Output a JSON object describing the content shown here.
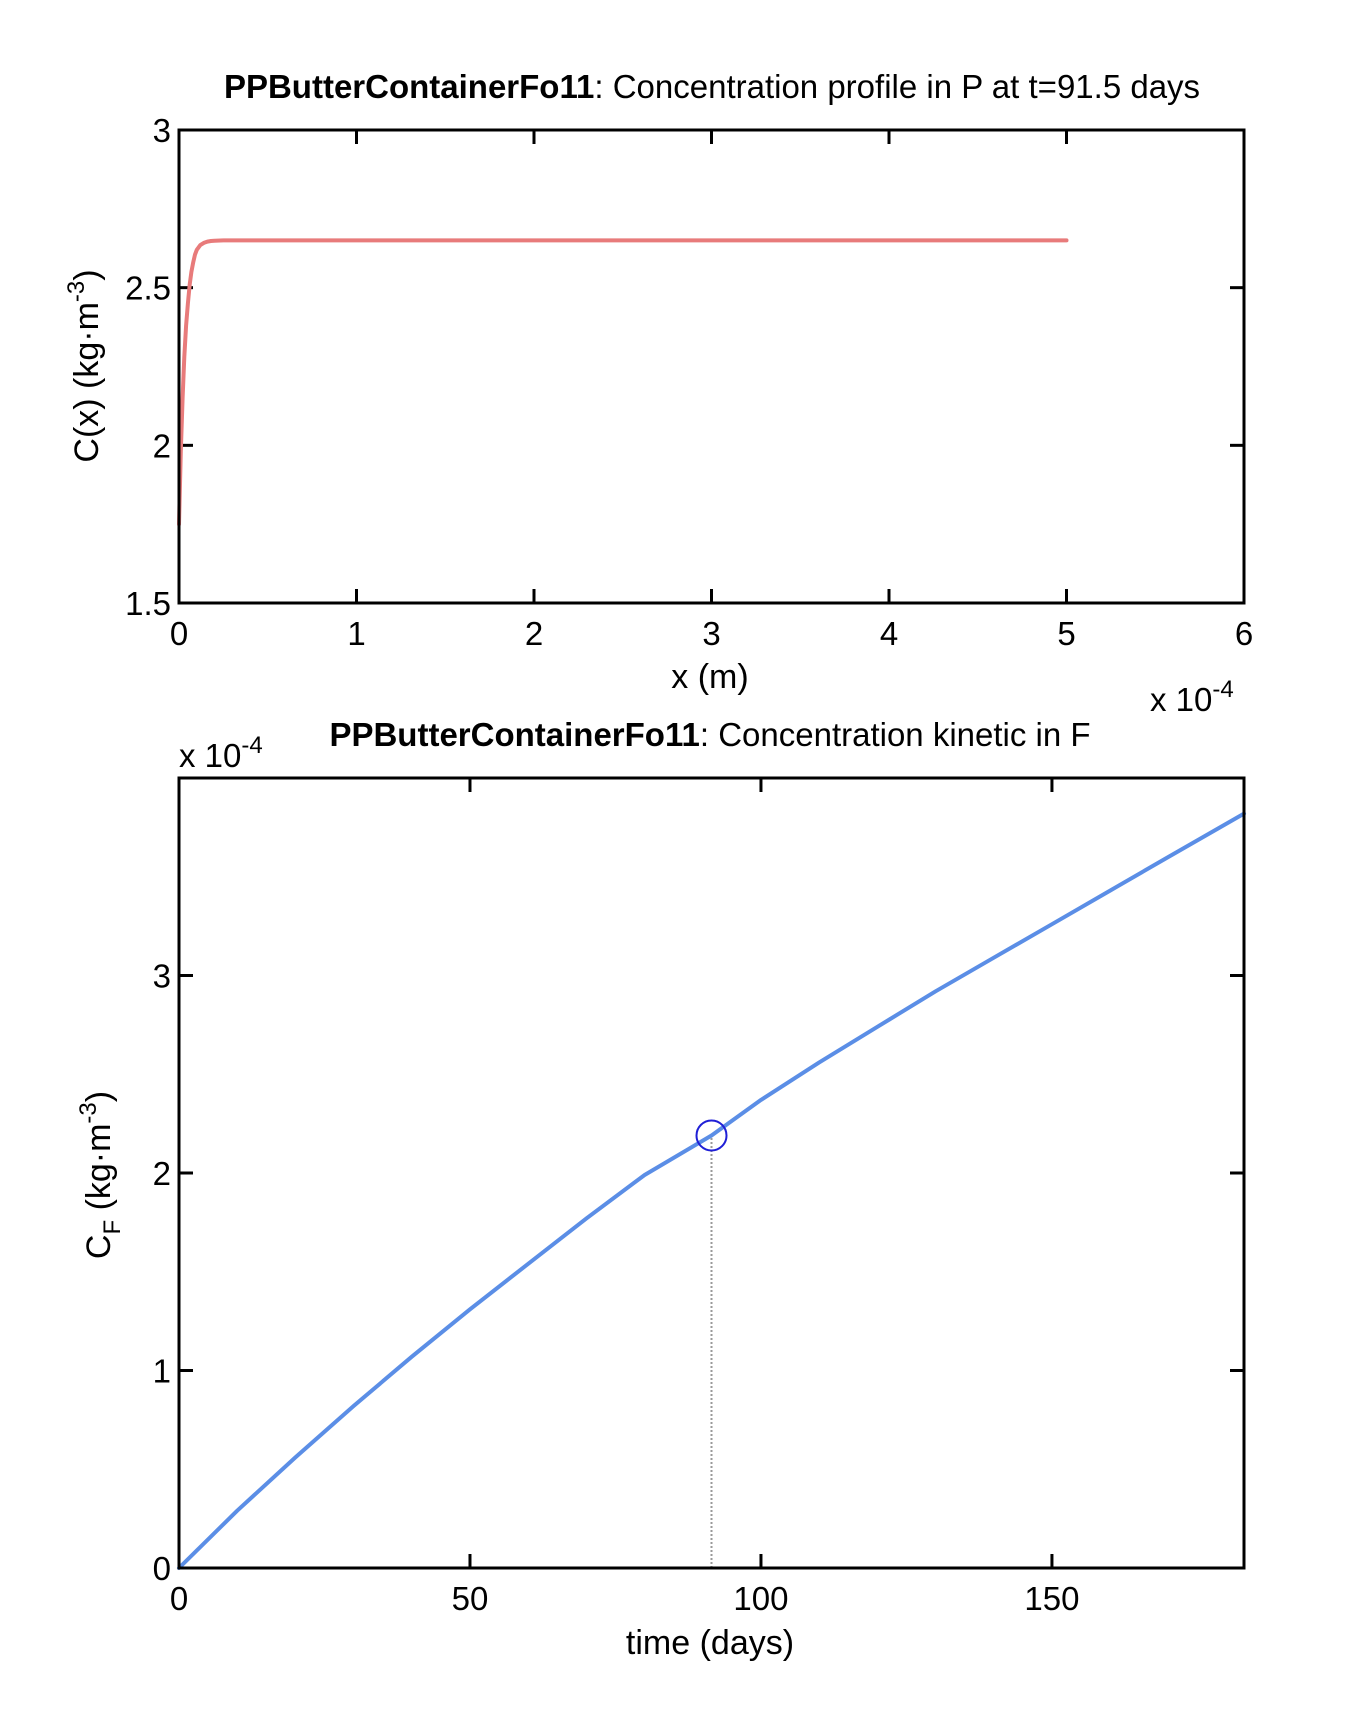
{
  "chart_data": [
    {
      "type": "line",
      "title_bold": "PPButterContainerFo11",
      "title_rest": ": Concentration profile in P at t=91.5 days",
      "xlabel": "x (m)",
      "ylabel": "C(x) (kg·m",
      "ylabel_sup": "-3",
      "ylabel_tail": ")",
      "x_exponent_base": "x 10",
      "x_exponent_power": "-4",
      "xlim": [
        0,
        6
      ],
      "ylim": [
        1.5,
        3
      ],
      "x_ticks": [
        0,
        1,
        2,
        3,
        4,
        5,
        6
      ],
      "y_ticks": [
        1.5,
        2,
        2.5,
        3
      ],
      "x_tick_labels": [
        "0",
        "1",
        "2",
        "3",
        "4",
        "5",
        "6"
      ],
      "y_tick_labels": [
        "1.5",
        "2",
        "2.5",
        "3"
      ],
      "grid": false,
      "series": [
        {
          "color": "#e87b7b",
          "x": [
            0,
            0.01,
            0.02,
            0.03,
            0.04,
            0.05,
            0.06,
            0.07,
            0.08,
            0.09,
            0.1,
            0.12,
            0.14,
            0.16,
            0.18,
            0.2,
            0.25,
            0.3,
            0.5,
            1,
            2,
            3,
            4,
            5
          ],
          "y": [
            1.75,
            1.98,
            2.15,
            2.28,
            2.38,
            2.45,
            2.51,
            2.55,
            2.58,
            2.605,
            2.62,
            2.635,
            2.642,
            2.646,
            2.648,
            2.649,
            2.65,
            2.65,
            2.65,
            2.65,
            2.65,
            2.65,
            2.65,
            2.65
          ]
        }
      ]
    },
    {
      "type": "line",
      "title_bold": "PPButterContainerFo11",
      "title_rest": ": Concentration kinetic in F",
      "xlabel": "time (days)",
      "ylabel_main": "C",
      "ylabel_sub": "F",
      "ylabel": " (kg·m",
      "ylabel_sup": "-3",
      "ylabel_tail": ")",
      "y_exponent_base": "x 10",
      "y_exponent_power": "-4",
      "xlim": [
        0,
        183
      ],
      "ylim": [
        0,
        4
      ],
      "x_ticks": [
        0,
        50,
        100,
        150
      ],
      "y_ticks": [
        0,
        1,
        2,
        3
      ],
      "x_tick_labels": [
        "0",
        "50",
        "100",
        "150"
      ],
      "y_tick_labels": [
        "0",
        "1",
        "2",
        "3"
      ],
      "grid": false,
      "series": [
        {
          "color": "#5b8ee6",
          "x": [
            0,
            10,
            20,
            30,
            40,
            50,
            60,
            70,
            80,
            91.5,
            100,
            110,
            120,
            130,
            140,
            150,
            160,
            170,
            183
          ],
          "y": [
            0,
            0.29,
            0.56,
            0.82,
            1.07,
            1.31,
            1.54,
            1.77,
            1.99,
            2.19,
            2.37,
            2.56,
            2.74,
            2.92,
            3.09,
            3.26,
            3.43,
            3.6,
            3.82
          ]
        }
      ],
      "marker": {
        "x": 91.5,
        "y": 2.19,
        "color": "#1f1fd6"
      },
      "drop_line": {
        "x": 91.5,
        "from_y": 0,
        "to_y": 2.19,
        "color": "#9a9a9a"
      }
    }
  ]
}
